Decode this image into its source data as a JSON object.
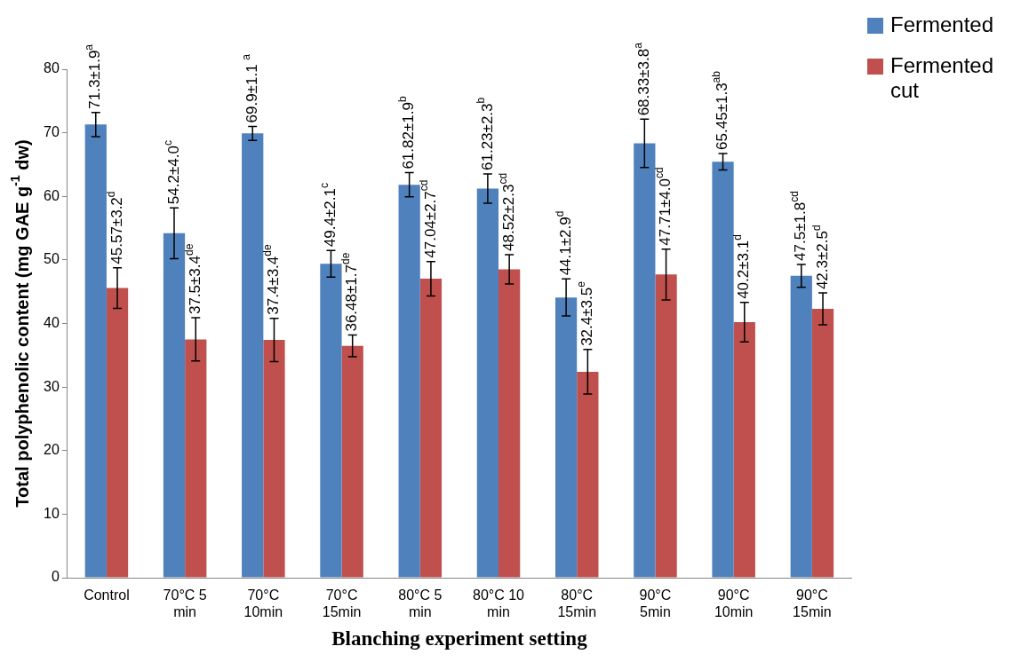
{
  "chart_data": {
    "type": "bar",
    "xlabel": "Blanching experiment setting",
    "ylabel": "Total polyphenolic content (mg GAE g$^{-1}$ dw)",
    "categories": [
      "Control",
      "70°C 5 min",
      "70°C 10min",
      "70°C 15min",
      "80°C 5 min",
      "80°C 10 min",
      "80°C 15min",
      "90°C 5min",
      "90°C 10min",
      "90°C 15min"
    ],
    "series": [
      {
        "name": "Fermented",
        "color": "#4f81bd",
        "values": [
          71.3,
          54.2,
          69.9,
          49.4,
          61.82,
          61.23,
          44.1,
          68.33,
          65.45,
          47.5
        ],
        "errors": [
          1.9,
          4.0,
          1.1,
          2.1,
          1.9,
          2.3,
          2.9,
          3.8,
          1.3,
          1.8
        ],
        "value_labels": [
          "71.3±1.9$^{a}$",
          "54.2±4.0$^{c}$",
          "69.9±1.1 $^{a}$",
          "49.4±2.1$^{c}$",
          "61.82±1.9$^{b}$",
          "61.23±2.3$^{b}$",
          "44.1±2.9$^{d}$",
          "68.33±3.8$^{a}$",
          "65.45±1.3$^{ab}$",
          "47.5±1.8$^{cd}$"
        ]
      },
      {
        "name": "Fermented cut",
        "color": "#c0504d",
        "values": [
          45.57,
          37.5,
          37.4,
          36.48,
          47.04,
          48.52,
          32.4,
          47.71,
          40.2,
          42.3
        ],
        "errors": [
          3.2,
          3.4,
          3.4,
          1.7,
          2.7,
          2.3,
          3.5,
          4.0,
          3.1,
          2.5
        ],
        "value_labels": [
          "45.57±3.2$^{d}$",
          "37.5±3.4$^{de}$",
          "37.4±3.4$^{de}$",
          "36.48±1.7$^{de}$",
          "47.04±2.7$^{cd}$",
          "48.52±2.3$^{cd}$",
          "32.4±3.5$^{e}$",
          "47.71±4.0$^{cd}$",
          "40.2±3.1$^{d}$",
          "42.3±2.5$^{d}$"
        ]
      }
    ],
    "ylim": [
      0,
      80
    ],
    "yticks": [
      0,
      10,
      20,
      30,
      40,
      50,
      60,
      70,
      80
    ],
    "grid": false,
    "legend": "top right"
  }
}
